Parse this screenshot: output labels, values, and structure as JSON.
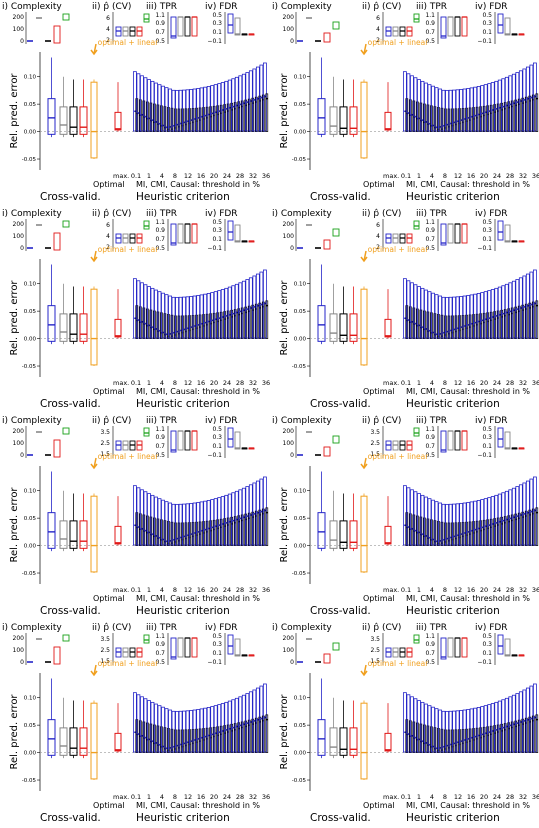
{
  "colors": {
    "blue": "#2525c8",
    "black": "#000000",
    "gray": "#888888",
    "red": "#e01818",
    "green": "#18a018",
    "orange": "#f0a020"
  },
  "labels": {
    "complexity": "i) Complexity",
    "p_cv": "ii) p̂ (CV)",
    "tpr": "iii) TPR",
    "fdr": "iv) FDR",
    "ylabel": "Rel. pred. error",
    "optimal_linear": "optimal + linear",
    "max": "max.",
    "optimal": "Optimal",
    "mi_caption": "MI, CMI, Causal: threshold in %",
    "cross_valid": "Cross-valid.",
    "heuristic": "Heuristic criterion"
  },
  "axes": {
    "complexity_ticks": [
      "200",
      "100",
      "0"
    ],
    "p_ticks_a": [
      "6",
      "4",
      "2"
    ],
    "p_ticks_b": [
      "3.5",
      "2.5",
      "1.5"
    ],
    "tpr_ticks": [
      "1.1",
      "0.9",
      "0.7",
      "0.5"
    ],
    "fdr_ticks": [
      "0.5",
      "0.3",
      "0.1",
      "−0.1"
    ],
    "main_ticks": [
      "0.10",
      "0.05",
      "0.00",
      "-0.05"
    ],
    "x_thresholds": [
      "0.1",
      "1",
      "4",
      "8",
      "12",
      "16",
      "20",
      "24",
      "28",
      "32",
      "36"
    ]
  },
  "chart_data": [
    {
      "type": "box",
      "panel": "row1-left",
      "p_scale": "a",
      "main_ymin": -0.07,
      "main_ymax": 0.145,
      "cv_medians": [
        0.025,
        0.012,
        0.008,
        0.008
      ],
      "heuristic_mean_range": [
        0.003,
        0.06
      ]
    },
    {
      "type": "box",
      "panel": "row1-right",
      "p_scale": "a",
      "main_ymin": -0.07,
      "main_ymax": 0.145,
      "cv_medians": [
        0.025,
        0.01,
        0.006,
        0.006
      ],
      "heuristic_mean_range": [
        0.003,
        0.06
      ]
    },
    {
      "type": "box",
      "panel": "row2-left",
      "p_scale": "a",
      "main_ymin": -0.07,
      "main_ymax": 0.145,
      "cv_medians": [
        0.025,
        0.012,
        0.008,
        0.008
      ],
      "heuristic_mean_range": [
        0.003,
        0.06
      ]
    },
    {
      "type": "box",
      "panel": "row2-right",
      "p_scale": "a",
      "main_ymin": -0.07,
      "main_ymax": 0.145,
      "cv_medians": [
        0.025,
        0.01,
        0.006,
        0.006
      ],
      "heuristic_mean_range": [
        0.003,
        0.06
      ]
    },
    {
      "type": "box",
      "panel": "row3-left",
      "p_scale": "b",
      "main_ymin": -0.07,
      "main_ymax": 0.145,
      "cv_medians": [
        0.025,
        0.012,
        0.008,
        0.008
      ],
      "heuristic_mean_range": [
        0.003,
        0.06
      ]
    },
    {
      "type": "box",
      "panel": "row3-right",
      "p_scale": "b",
      "main_ymin": -0.07,
      "main_ymax": 0.145,
      "cv_medians": [
        0.025,
        0.01,
        0.006,
        0.006
      ],
      "heuristic_mean_range": [
        0.003,
        0.06
      ]
    },
    {
      "type": "box",
      "panel": "row4-left",
      "p_scale": "b",
      "main_ymin": -0.07,
      "main_ymax": 0.145,
      "cv_medians": [
        0.025,
        0.012,
        0.008,
        0.008
      ],
      "heuristic_mean_range": [
        0.003,
        0.06
      ]
    },
    {
      "type": "box",
      "panel": "row4-right",
      "p_scale": "b",
      "main_ymin": -0.07,
      "main_ymax": 0.145,
      "cv_medians": [
        0.025,
        0.01,
        0.006,
        0.006
      ],
      "heuristic_mean_range": [
        0.003,
        0.06
      ]
    }
  ]
}
